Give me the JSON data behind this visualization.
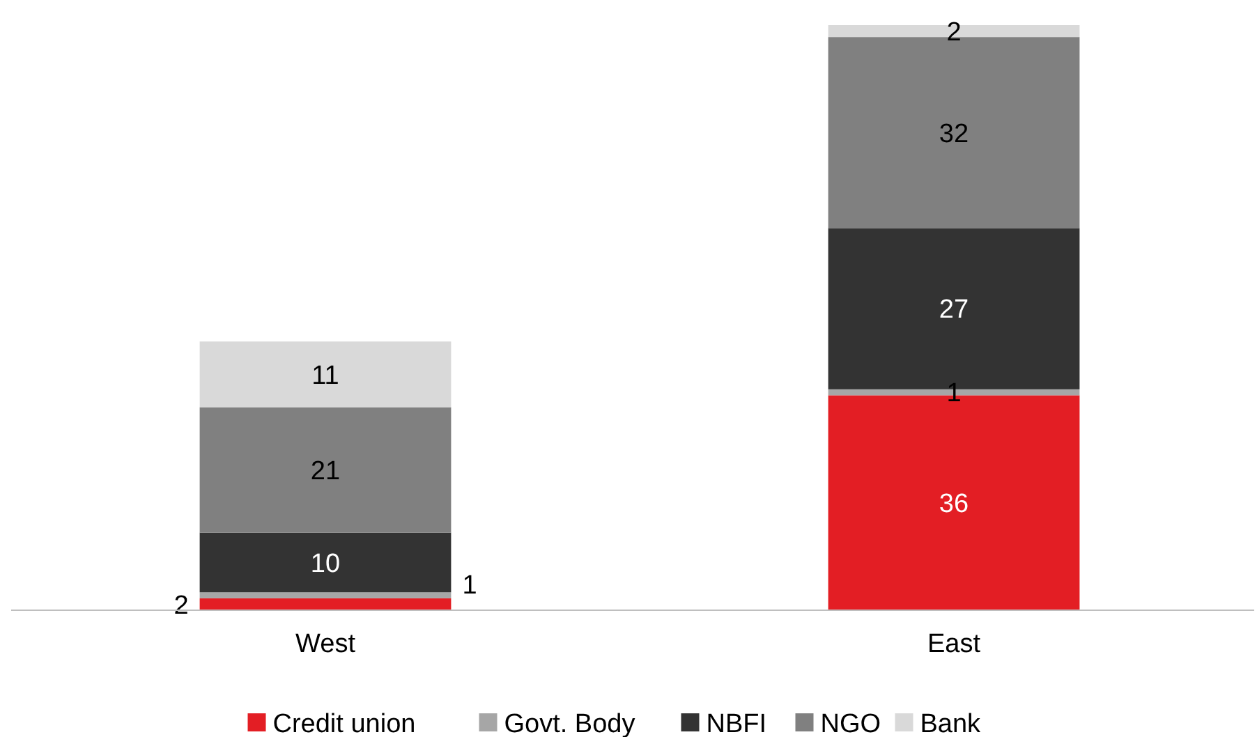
{
  "chart_data": {
    "type": "bar",
    "stacked": true,
    "categories": [
      "West",
      "East"
    ],
    "series": [
      {
        "name": "Credit union",
        "color": "#e31e24",
        "values": [
          2,
          36
        ]
      },
      {
        "name": "Govt. Body",
        "color": "#a6a6a6",
        "values": [
          1,
          1
        ]
      },
      {
        "name": "NBFI",
        "color": "#333333",
        "values": [
          10,
          27
        ]
      },
      {
        "name": "NGO",
        "color": "#808080",
        "values": [
          21,
          32
        ]
      },
      {
        "name": "Bank",
        "color": "#d9d9d9",
        "values": [
          11,
          2
        ]
      }
    ],
    "data_labels": true,
    "legend": "bottom",
    "grid": false
  }
}
